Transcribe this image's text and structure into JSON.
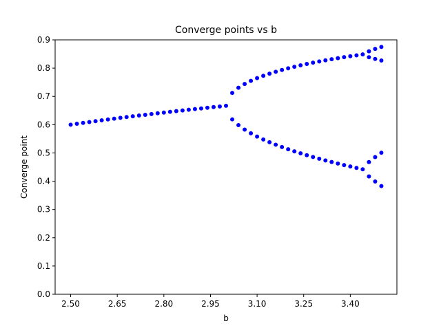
{
  "chart_data": {
    "type": "scatter",
    "title": "Converge points vs b",
    "xlabel": "b",
    "ylabel": "Converge point",
    "color": "#0000ff",
    "xlim": [
      2.45,
      3.55
    ],
    "xticks": [
      {
        "value": 2.5,
        "label": "2.50"
      },
      2.65,
      {
        "value": 2.8,
        "label": "2.80"
      },
      2.95,
      {
        "value": 3.1,
        "label": "3.10"
      },
      3.25,
      {
        "value": 3.4,
        "label": "3.40"
      }
    ],
    "ylim": [
      0,
      0.9
    ],
    "yticks": [
      {
        "value": 0,
        "label": "0.0"
      },
      0.1,
      0.2,
      0.3,
      0.4,
      0.5,
      0.6,
      0.7,
      0.8,
      0.9
    ],
    "x": [
      2.5,
      2.52,
      2.54,
      2.56,
      2.58,
      2.6,
      2.62,
      2.64,
      2.66,
      2.68,
      2.7,
      2.72,
      2.74,
      2.76,
      2.78,
      2.8,
      2.82,
      2.84,
      2.86,
      2.88,
      2.9,
      2.92,
      2.94,
      2.96,
      2.98,
      3.0,
      3.02,
      3.02,
      3.04,
      3.04,
      3.06,
      3.06,
      3.08,
      3.08,
      3.1,
      3.1,
      3.12,
      3.12,
      3.14,
      3.14,
      3.16,
      3.16,
      3.18,
      3.18,
      3.2,
      3.2,
      3.22,
      3.22,
      3.24,
      3.24,
      3.26,
      3.26,
      3.28,
      3.28,
      3.3,
      3.3,
      3.32,
      3.32,
      3.34,
      3.34,
      3.36,
      3.36,
      3.38,
      3.38,
      3.4,
      3.4,
      3.42,
      3.42,
      3.44,
      3.44,
      3.46,
      3.46,
      3.46,
      3.46,
      3.48,
      3.48,
      3.48,
      3.48,
      3.5,
      3.5,
      3.5,
      3.5
    ],
    "values": [
      0.6,
      0.6032,
      0.6063,
      0.6094,
      0.6124,
      0.6154,
      0.6183,
      0.6212,
      0.6241,
      0.6269,
      0.6296,
      0.6324,
      0.635,
      0.6377,
      0.6403,
      0.6429,
      0.6454,
      0.6479,
      0.6503,
      0.6528,
      0.6552,
      0.6575,
      0.6599,
      0.6622,
      0.6644,
      0.6667,
      0.7125,
      0.6186,
      0.7306,
      0.5984,
      0.7441,
      0.5827,
      0.7551,
      0.5696,
      0.7646,
      0.558,
      0.7729,
      0.5476,
      0.7805,
      0.538,
      0.7873,
      0.5292,
      0.7936,
      0.5208,
      0.7995,
      0.513,
      0.8049,
      0.5057,
      0.81,
      0.4986,
      0.8148,
      0.492,
      0.8193,
      0.4856,
      0.8236,
      0.4794,
      0.8277,
      0.4735,
      0.8316,
      0.4679,
      0.8352,
      0.4624,
      0.8388,
      0.4571,
      0.8422,
      0.452,
      0.8454,
      0.447,
      0.8485,
      0.4422,
      0.8597,
      0.8387,
      0.4675,
      0.4169,
      0.868,
      0.8325,
      0.4853,
      0.3988,
      0.875,
      0.8269,
      0.5009,
      0.3828
    ]
  }
}
